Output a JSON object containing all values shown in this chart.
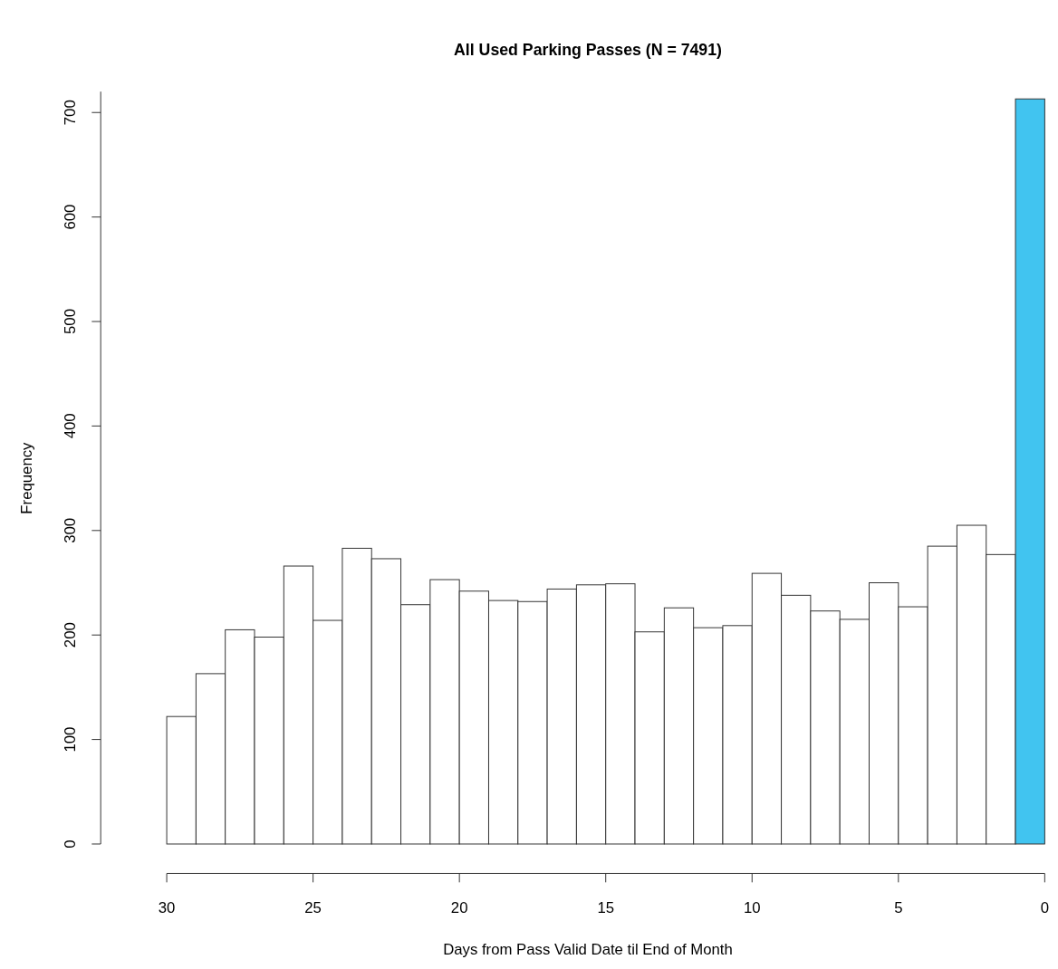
{
  "chart_data": {
    "type": "histogram",
    "title": "All Used Parking Passes (N = 7491)",
    "xlabel": "Days from Pass Valid Date til End of Month",
    "ylabel": "Frequency",
    "bins": [
      30,
      29,
      28,
      27,
      26,
      25,
      24,
      23,
      22,
      21,
      20,
      19,
      18,
      17,
      16,
      15,
      14,
      13,
      12,
      11,
      10,
      9,
      8,
      7,
      6,
      5,
      4,
      3,
      2,
      1,
      0
    ],
    "values": [
      122,
      163,
      205,
      198,
      266,
      214,
      283,
      273,
      229,
      253,
      242,
      233,
      232,
      244,
      248,
      249,
      203,
      226,
      207,
      209,
      259,
      238,
      223,
      215,
      250,
      227,
      285,
      305,
      277,
      713
    ],
    "colors": [
      "#ffffff",
      "#ffffff",
      "#ffffff",
      "#ffffff",
      "#ffffff",
      "#ffffff",
      "#ffffff",
      "#ffffff",
      "#ffffff",
      "#ffffff",
      "#ffffff",
      "#ffffff",
      "#ffffff",
      "#ffffff",
      "#ffffff",
      "#ffffff",
      "#ffffff",
      "#ffffff",
      "#ffffff",
      "#ffffff",
      "#ffffff",
      "#ffffff",
      "#ffffff",
      "#ffffff",
      "#ffffff",
      "#ffffff",
      "#ffffff",
      "#ffffff",
      "#ffffff",
      "#41c4f0"
    ],
    "xlim": [
      30,
      0
    ],
    "xticks": [
      30,
      25,
      20,
      15,
      10,
      5,
      0
    ],
    "ylim": [
      0,
      720
    ],
    "yticks": [
      0,
      100,
      200,
      300,
      400,
      500,
      600,
      700
    ],
    "grid": false
  }
}
